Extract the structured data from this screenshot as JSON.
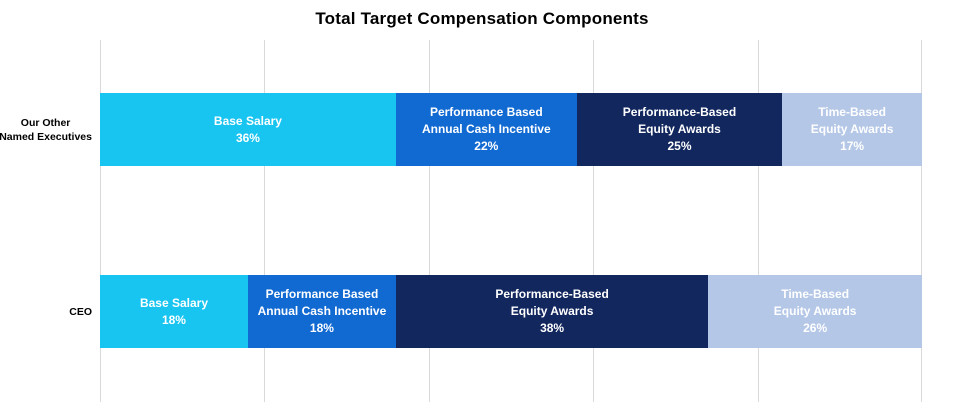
{
  "title": "Total Target Compensation Components",
  "colors": {
    "base_salary": "#18C4F0",
    "annual_cash_incentive": "#1169D2",
    "performance_equity": "#12275E",
    "time_equity": "#B4C7E7",
    "gridline": "#D9D9D9",
    "title_text": "#000000",
    "segment_text": "#FFFFFF"
  },
  "rows": [
    {
      "label_line1": "Our Other",
      "label_line2": "Named Executives",
      "segments": [
        {
          "line1": "Base Salary",
          "line2": "",
          "pct": "36%",
          "width": 36,
          "color": "#18C4F0"
        },
        {
          "line1": "Performance Based",
          "line2": "Annual Cash Incentive",
          "pct": "22%",
          "width": 22,
          "color": "#1169D2"
        },
        {
          "line1": "Performance-Based",
          "line2": "Equity Awards",
          "pct": "25%",
          "width": 25,
          "color": "#12275E"
        },
        {
          "line1": "Time-Based",
          "line2": "Equity Awards",
          "pct": "17%",
          "width": 17,
          "color": "#B4C7E7"
        }
      ]
    },
    {
      "label_line1": "CEO",
      "label_line2": "",
      "segments": [
        {
          "line1": "Base Salary",
          "line2": "",
          "pct": "18%",
          "width": 18,
          "color": "#18C4F0"
        },
        {
          "line1": "Performance Based",
          "line2": "Annual Cash Incentive",
          "pct": "18%",
          "width": 18,
          "color": "#1169D2"
        },
        {
          "line1": "Performance-Based",
          "line2": "Equity Awards",
          "pct": "38%",
          "width": 38,
          "color": "#12275E"
        },
        {
          "line1": "Time-Based",
          "line2": "Equity Awards",
          "pct": "26%",
          "width": 26,
          "color": "#B4C7E7"
        }
      ]
    }
  ],
  "chart_data": {
    "type": "bar",
    "variant": "horizontal-stacked",
    "title": "Total Target Compensation Components",
    "categories": [
      "Our Other Named Executives",
      "CEO"
    ],
    "series": [
      {
        "name": "Base Salary",
        "values": [
          36,
          18
        ],
        "color": "#18C4F0"
      },
      {
        "name": "Performance Based Annual Cash Incentive",
        "values": [
          22,
          18
        ],
        "color": "#1169D2"
      },
      {
        "name": "Performance-Based Equity Awards",
        "values": [
          25,
          38
        ],
        "color": "#12275E"
      },
      {
        "name": "Time-Based Equity Awards",
        "values": [
          17,
          26
        ],
        "color": "#B4C7E7"
      }
    ],
    "value_unit": "%",
    "xlim": [
      0,
      100
    ],
    "gridline_positions": [
      0,
      20,
      40,
      60,
      80,
      100
    ],
    "grid": "vertical-only",
    "legend": "none",
    "data_labels": "series-name-and-percent-inside-segment"
  }
}
